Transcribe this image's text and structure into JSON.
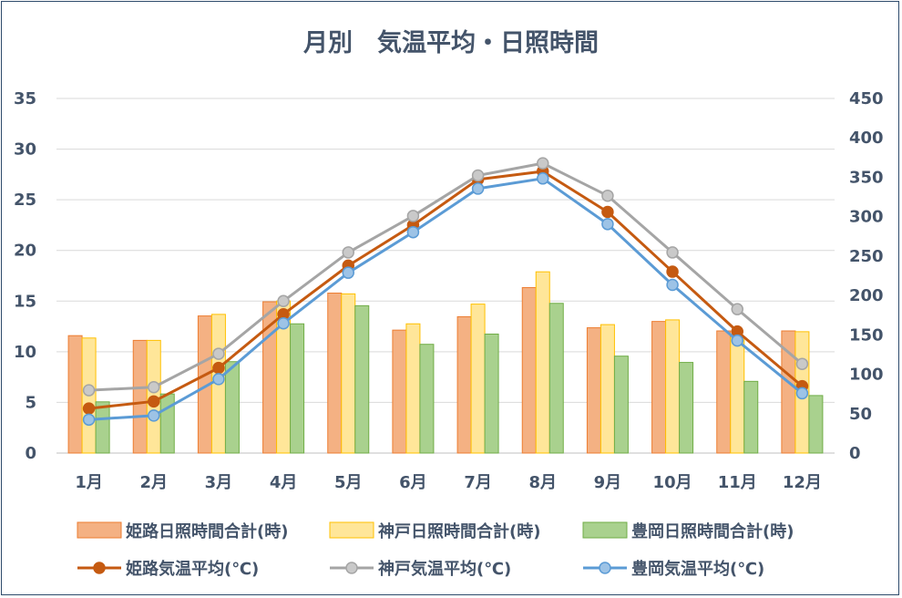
{
  "chart_data": {
    "type": "bar",
    "title": "月別　気温平均・日照時間",
    "categories": [
      "1月",
      "2月",
      "3月",
      "4月",
      "5月",
      "6月",
      "7月",
      "8月",
      "9月",
      "10月",
      "11月",
      "12月"
    ],
    "y_left": {
      "ticks": [
        "0",
        "5",
        "10",
        "15",
        "20",
        "25",
        "30",
        "35"
      ],
      "range": [
        0,
        35
      ]
    },
    "y_right": {
      "ticks": [
        "0",
        "50",
        "100",
        "150",
        "200",
        "250",
        "300",
        "350",
        "400",
        "450"
      ],
      "range": [
        0,
        450
      ]
    },
    "grid": "horizontal",
    "legend_position": "bottom",
    "bar_series": [
      {
        "name": "姫路日照時間合計(時)",
        "color": "#f4b183",
        "edge": "#ed7d31",
        "values": [
          149,
          143,
          174,
          192,
          203,
          156,
          173,
          210,
          159,
          167,
          155,
          155
        ]
      },
      {
        "name": "神戸日照時間合計(時)",
        "color": "#ffe699",
        "edge": "#ffc000",
        "values": [
          146,
          143,
          176,
          193,
          202,
          164,
          189,
          230,
          163,
          169,
          146,
          154
        ]
      },
      {
        "name": "豊岡日照時間合計(時)",
        "color": "#a9d18e",
        "edge": "#70ad47",
        "values": [
          65,
          75,
          116,
          164,
          187,
          138,
          151,
          190,
          123,
          115,
          91,
          73
        ]
      }
    ],
    "line_series": [
      {
        "name": "姫路気温平均(℃)",
        "color": "#c55a11",
        "marker": "#c55a11",
        "values": [
          4.4,
          5.1,
          8.4,
          13.7,
          18.5,
          22.5,
          27.0,
          27.8,
          23.8,
          17.9,
          12.0,
          6.6
        ]
      },
      {
        "name": "神戸気温平均(℃)",
        "color": "#a5a5a5",
        "marker": "#c9c9c9",
        "values": [
          6.2,
          6.5,
          9.8,
          15.0,
          19.8,
          23.4,
          27.4,
          28.6,
          25.4,
          19.8,
          14.2,
          8.8
        ]
      },
      {
        "name": "豊岡気温平均(℃)",
        "color": "#5b9bd5",
        "marker": "#9dc3e6",
        "values": [
          3.3,
          3.7,
          7.3,
          12.8,
          17.8,
          21.8,
          26.1,
          27.1,
          22.6,
          16.6,
          11.1,
          5.9
        ]
      }
    ]
  }
}
